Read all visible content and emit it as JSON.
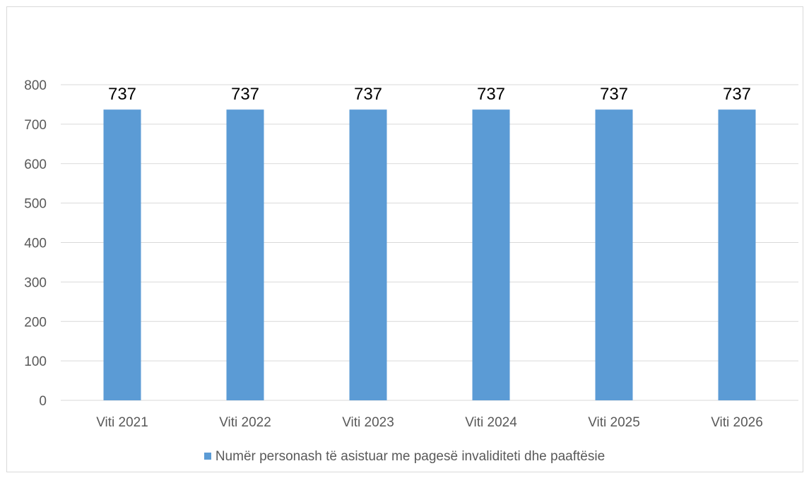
{
  "chart_data": {
    "type": "bar",
    "title": "",
    "xlabel": "",
    "ylabel": "",
    "categories": [
      "Viti 2021",
      "Viti 2022",
      "Viti 2023",
      "Viti 2024",
      "Viti 2025",
      "Viti 2026"
    ],
    "series": [
      {
        "name": "Numër personash të asistuar me pagesë invaliditeti dhe paaftësie",
        "values": [
          737,
          737,
          737,
          737,
          737,
          737
        ],
        "color": "#5b9bd5"
      }
    ],
    "ylim": [
      0,
      800
    ],
    "yticks": [
      0,
      100,
      200,
      300,
      400,
      500,
      600,
      700,
      800
    ],
    "grid": true,
    "data_labels": true,
    "legend_position": "bottom"
  }
}
